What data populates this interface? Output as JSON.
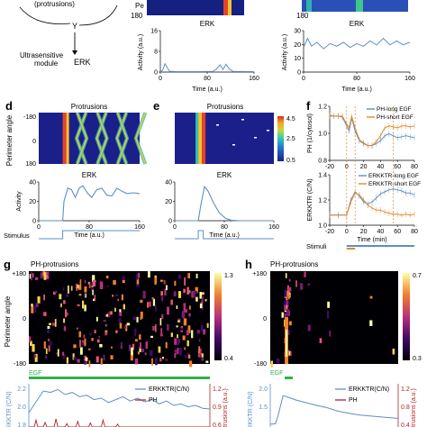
{
  "top": {
    "protrusions_label": "(protrusions)",
    "y_label": "Y",
    "module_label_1": "Ultrasensitive",
    "module_label_2": "module",
    "erk_node": "ERK",
    "perimeter_fragment": "Pe",
    "tick_180": "180"
  },
  "panels": {
    "b": {
      "title": "ERK",
      "ylabel": "Activity (a.u.)",
      "xlabel": "Time (a.u.)",
      "yticks": [
        "0",
        "8",
        "16"
      ],
      "xticks": [
        "0",
        "80",
        "160"
      ],
      "ylim": [
        0,
        20
      ],
      "xlim": [
        0,
        160
      ],
      "trace": [
        [
          0,
          0
        ],
        [
          4,
          1
        ],
        [
          8,
          4
        ],
        [
          12,
          2
        ],
        [
          16,
          0.4
        ],
        [
          28,
          0.2
        ],
        [
          60,
          0.2
        ],
        [
          90,
          0.3
        ],
        [
          96,
          1.5
        ],
        [
          102,
          3.5
        ],
        [
          107,
          1.2
        ],
        [
          112,
          3.8
        ],
        [
          118,
          1.5
        ],
        [
          124,
          0.3
        ],
        [
          160,
          0.2
        ]
      ]
    },
    "c": {
      "title": "ERK",
      "ylabel": "Activity (a.u.)",
      "xlabel": "Time (a.u.)",
      "yticks": [
        "0",
        "10",
        "20",
        "30"
      ],
      "xticks": [
        "0",
        "80",
        "160"
      ],
      "ylim": [
        0,
        32
      ],
      "xlim": [
        0,
        160
      ],
      "trace": [
        [
          0,
          19
        ],
        [
          6,
          26
        ],
        [
          12,
          20
        ],
        [
          20,
          23
        ],
        [
          30,
          18
        ],
        [
          40,
          22
        ],
        [
          50,
          20
        ],
        [
          60,
          23
        ],
        [
          70,
          19
        ],
        [
          80,
          22
        ],
        [
          90,
          20
        ],
        [
          100,
          24
        ],
        [
          110,
          21
        ],
        [
          120,
          26
        ],
        [
          130,
          21
        ],
        [
          140,
          24
        ],
        [
          150,
          21
        ],
        [
          160,
          23
        ]
      ]
    },
    "d": {
      "letter": "d",
      "title": "Protrusions",
      "ylabel": "Perimeter angle",
      "yticks": [
        "-180",
        "0",
        "180"
      ],
      "erk_title": "ERK",
      "erk_ylabel": "Activity",
      "erk_yticks": [
        "0",
        "20",
        "40"
      ],
      "erk_xticks": [
        "0",
        "80",
        "160"
      ],
      "xlabel": "Time (a.u.)",
      "stimulus_label": "Stimulus",
      "ylim": [
        0,
        50
      ],
      "xlim": [
        0,
        160
      ],
      "trace": [
        [
          0,
          0
        ],
        [
          38,
          0
        ],
        [
          40,
          25
        ],
        [
          46,
          42
        ],
        [
          52,
          40
        ],
        [
          58,
          30
        ],
        [
          64,
          42
        ],
        [
          70,
          45
        ],
        [
          78,
          35
        ],
        [
          84,
          30
        ],
        [
          92,
          40
        ],
        [
          100,
          42
        ],
        [
          108,
          33
        ],
        [
          116,
          32
        ],
        [
          124,
          42
        ],
        [
          132,
          38
        ],
        [
          140,
          35
        ],
        [
          150,
          36
        ],
        [
          160,
          35
        ]
      ],
      "stimulus": [
        [
          0,
          0
        ],
        [
          38,
          0
        ],
        [
          38,
          1
        ],
        [
          160,
          1
        ]
      ]
    },
    "e": {
      "letter": "e",
      "title": "Protrusions",
      "colorbar_ticks": [
        "4.5",
        "2.5",
        "0.5"
      ],
      "erk_title": "ERK",
      "erk_yticks": [
        "0",
        "20",
        "40"
      ],
      "erk_xticks": [
        "0",
        "80",
        "160"
      ],
      "xlabel": "Time (a.u.)",
      "ylim": [
        0,
        50
      ],
      "xlim": [
        0,
        160
      ],
      "trace": [
        [
          0,
          0
        ],
        [
          38,
          0
        ],
        [
          42,
          20
        ],
        [
          48,
          44
        ],
        [
          54,
          38
        ],
        [
          62,
          24
        ],
        [
          72,
          10
        ],
        [
          82,
          3
        ],
        [
          92,
          0.5
        ],
        [
          105,
          0
        ],
        [
          160,
          0
        ]
      ],
      "stimulus": [
        [
          0,
          0
        ],
        [
          38,
          0
        ],
        [
          38,
          1
        ],
        [
          46,
          1
        ],
        [
          46,
          0
        ],
        [
          160,
          0
        ]
      ]
    },
    "f": {
      "letter": "f",
      "top_ylabel": "PH (1/cytosol)",
      "top_yticks": [
        "0.8",
        "1.0",
        "1.2"
      ],
      "top_legend": [
        "PH-long EGF",
        "PH-short EGF"
      ],
      "bottom_ylabel": "ERKKTR (C/N)",
      "bottom_yticks": [
        "1.0",
        "1.2",
        "1.4"
      ],
      "bottom_legend": [
        "ERKKTR-long EGF",
        "ERKKTR-short EGF"
      ],
      "xticks": [
        "-20",
        "0",
        "20",
        "40",
        "60",
        "80"
      ],
      "xlabel": "Time (min)",
      "stimuli_label": "Stimuli",
      "xlim": [
        -20,
        80
      ],
      "colors": {
        "long": "#5b8fc7",
        "short": "#e08a2e"
      },
      "top_ylim": [
        0.75,
        1.3
      ],
      "bottom_ylim": [
        0.95,
        1.45
      ],
      "ph_long": [
        [
          -20,
          1.2
        ],
        [
          -15,
          1.2
        ],
        [
          -10,
          1.2
        ],
        [
          -5,
          1.19
        ],
        [
          0,
          1.1
        ],
        [
          3,
          1.05
        ],
        [
          6,
          1.18
        ],
        [
          10,
          1.05
        ],
        [
          15,
          0.95
        ],
        [
          20,
          0.92
        ],
        [
          25,
          0.9
        ],
        [
          30,
          0.9
        ],
        [
          35,
          0.92
        ],
        [
          40,
          0.95
        ],
        [
          45,
          1.0
        ],
        [
          50,
          1.02
        ],
        [
          55,
          1.0
        ],
        [
          60,
          0.98
        ],
        [
          65,
          0.99
        ],
        [
          70,
          1.0
        ],
        [
          75,
          0.99
        ],
        [
          80,
          0.98
        ]
      ],
      "ph_short": [
        [
          -20,
          1.21
        ],
        [
          -15,
          1.2
        ],
        [
          -10,
          1.2
        ],
        [
          -5,
          1.2
        ],
        [
          0,
          1.12
        ],
        [
          3,
          1.08
        ],
        [
          6,
          1.2
        ],
        [
          10,
          1.08
        ],
        [
          15,
          0.96
        ],
        [
          20,
          0.93
        ],
        [
          25,
          0.9
        ],
        [
          30,
          0.9
        ],
        [
          35,
          0.94
        ],
        [
          40,
          1.0
        ],
        [
          45,
          1.08
        ],
        [
          50,
          1.1
        ],
        [
          55,
          1.09
        ],
        [
          60,
          1.08
        ],
        [
          65,
          1.1
        ],
        [
          70,
          1.1
        ],
        [
          75,
          1.09
        ],
        [
          80,
          1.1
        ]
      ],
      "erk_long": [
        [
          -20,
          1.05
        ],
        [
          -10,
          1.05
        ],
        [
          0,
          1.05
        ],
        [
          5,
          1.2
        ],
        [
          10,
          1.28
        ],
        [
          15,
          1.24
        ],
        [
          20,
          1.18
        ],
        [
          25,
          1.16
        ],
        [
          30,
          1.18
        ],
        [
          35,
          1.22
        ],
        [
          40,
          1.26
        ],
        [
          45,
          1.28
        ],
        [
          50,
          1.3
        ],
        [
          55,
          1.31
        ],
        [
          60,
          1.3
        ],
        [
          65,
          1.29
        ],
        [
          70,
          1.27
        ],
        [
          75,
          1.27
        ],
        [
          80,
          1.25
        ]
      ],
      "erk_short": [
        [
          -20,
          1.05
        ],
        [
          -10,
          1.05
        ],
        [
          0,
          1.05
        ],
        [
          5,
          1.18
        ],
        [
          10,
          1.27
        ],
        [
          15,
          1.25
        ],
        [
          20,
          1.2
        ],
        [
          25,
          1.15
        ],
        [
          30,
          1.12
        ],
        [
          35,
          1.1
        ],
        [
          40,
          1.1
        ],
        [
          45,
          1.08
        ],
        [
          50,
          1.07
        ],
        [
          55,
          1.06
        ],
        [
          60,
          1.06
        ],
        [
          65,
          1.05
        ],
        [
          70,
          1.06
        ],
        [
          75,
          1.05
        ],
        [
          80,
          1.06
        ]
      ]
    },
    "g": {
      "letter": "g",
      "title": "PH-protrusions",
      "ylabel": "Perimeter angle",
      "yticks": [
        "+180",
        "0",
        "-180"
      ],
      "colorbar_ticks": [
        "1.3",
        "0.4"
      ],
      "egf_label": "EGF",
      "legend": [
        "ERKKTR(C/N)",
        "PH"
      ],
      "left_ylabel": "ERKKTR (C/N)",
      "left_yticks": [
        "2.2",
        "2.0",
        "1.8"
      ],
      "right_ylabel": "Protrusions (a.u.)",
      "right_yticks": [
        "1.2",
        "0.9",
        "0.6"
      ],
      "colors": {
        "erk": "#5b8fc7",
        "ph": "#b22222",
        "egf": "#2fb14c"
      },
      "erk_ylim": [
        1.7,
        2.3
      ],
      "ph_ylim": [
        0.5,
        1.25
      ],
      "xlim": [
        0,
        100
      ],
      "erk_trace": [
        [
          0,
          1.9
        ],
        [
          4,
          2.05
        ],
        [
          8,
          2.2
        ],
        [
          12,
          2.18
        ],
        [
          16,
          2.22
        ],
        [
          20,
          2.15
        ],
        [
          24,
          2.18
        ],
        [
          28,
          2.12
        ],
        [
          32,
          2.14
        ],
        [
          36,
          2.08
        ],
        [
          40,
          2.1
        ],
        [
          44,
          2.04
        ],
        [
          48,
          2.08
        ],
        [
          52,
          2.12
        ],
        [
          56,
          2.06
        ],
        [
          60,
          2.1
        ],
        [
          64,
          2.05
        ],
        [
          68,
          2.08
        ],
        [
          72,
          2.02
        ],
        [
          76,
          2.06
        ],
        [
          80,
          2.0
        ],
        [
          84,
          2.02
        ],
        [
          88,
          1.98
        ],
        [
          92,
          2.0
        ],
        [
          96,
          1.96
        ],
        [
          100,
          1.95
        ]
      ],
      "ph_trace": [
        [
          0,
          0.5
        ],
        [
          3,
          0.5
        ],
        [
          4,
          0.62
        ],
        [
          5,
          0.5
        ],
        [
          8,
          0.5
        ],
        [
          9,
          0.58
        ],
        [
          10,
          0.5
        ],
        [
          14,
          0.5
        ],
        [
          15,
          0.64
        ],
        [
          16,
          0.5
        ],
        [
          20,
          0.5
        ],
        [
          21,
          0.56
        ],
        [
          22,
          0.5
        ],
        [
          26,
          0.5
        ],
        [
          27,
          0.6
        ],
        [
          28,
          0.5
        ],
        [
          33,
          0.5
        ],
        [
          34,
          0.57
        ],
        [
          35,
          0.5
        ],
        [
          40,
          0.5
        ],
        [
          41,
          0.62
        ],
        [
          42,
          0.5
        ],
        [
          48,
          0.5
        ],
        [
          49,
          0.55
        ],
        [
          50,
          0.5
        ],
        [
          100,
          0.5
        ]
      ]
    },
    "h": {
      "letter": "h",
      "title": "PH-protrusions",
      "yticks": [
        "+180",
        "0",
        "-180"
      ],
      "colorbar_ticks": [
        "0.7",
        "0.3"
      ],
      "egf_label": "EGF",
      "legend": [
        "ERKKTR(C/N)",
        "PH"
      ],
      "left_ylabel": "ERKKTR (C/N)",
      "left_yticks": [
        "2.0",
        "1.5"
      ],
      "right_ylabel": "Protrusions (a.u.)",
      "right_yticks": [
        "1.2",
        "0.8",
        "0.4"
      ],
      "erk_ylim": [
        1.4,
        2.2
      ],
      "xlim": [
        0,
        100
      ],
      "erk_trace": [
        [
          0,
          1.45
        ],
        [
          4,
          1.46
        ],
        [
          6,
          1.6
        ],
        [
          10,
          1.98
        ],
        [
          14,
          1.95
        ],
        [
          20,
          1.9
        ],
        [
          28,
          1.85
        ],
        [
          36,
          1.8
        ],
        [
          44,
          1.76
        ],
        [
          52,
          1.7
        ],
        [
          60,
          1.66
        ],
        [
          70,
          1.62
        ],
        [
          80,
          1.6
        ],
        [
          90,
          1.58
        ],
        [
          100,
          1.56
        ]
      ]
    }
  }
}
